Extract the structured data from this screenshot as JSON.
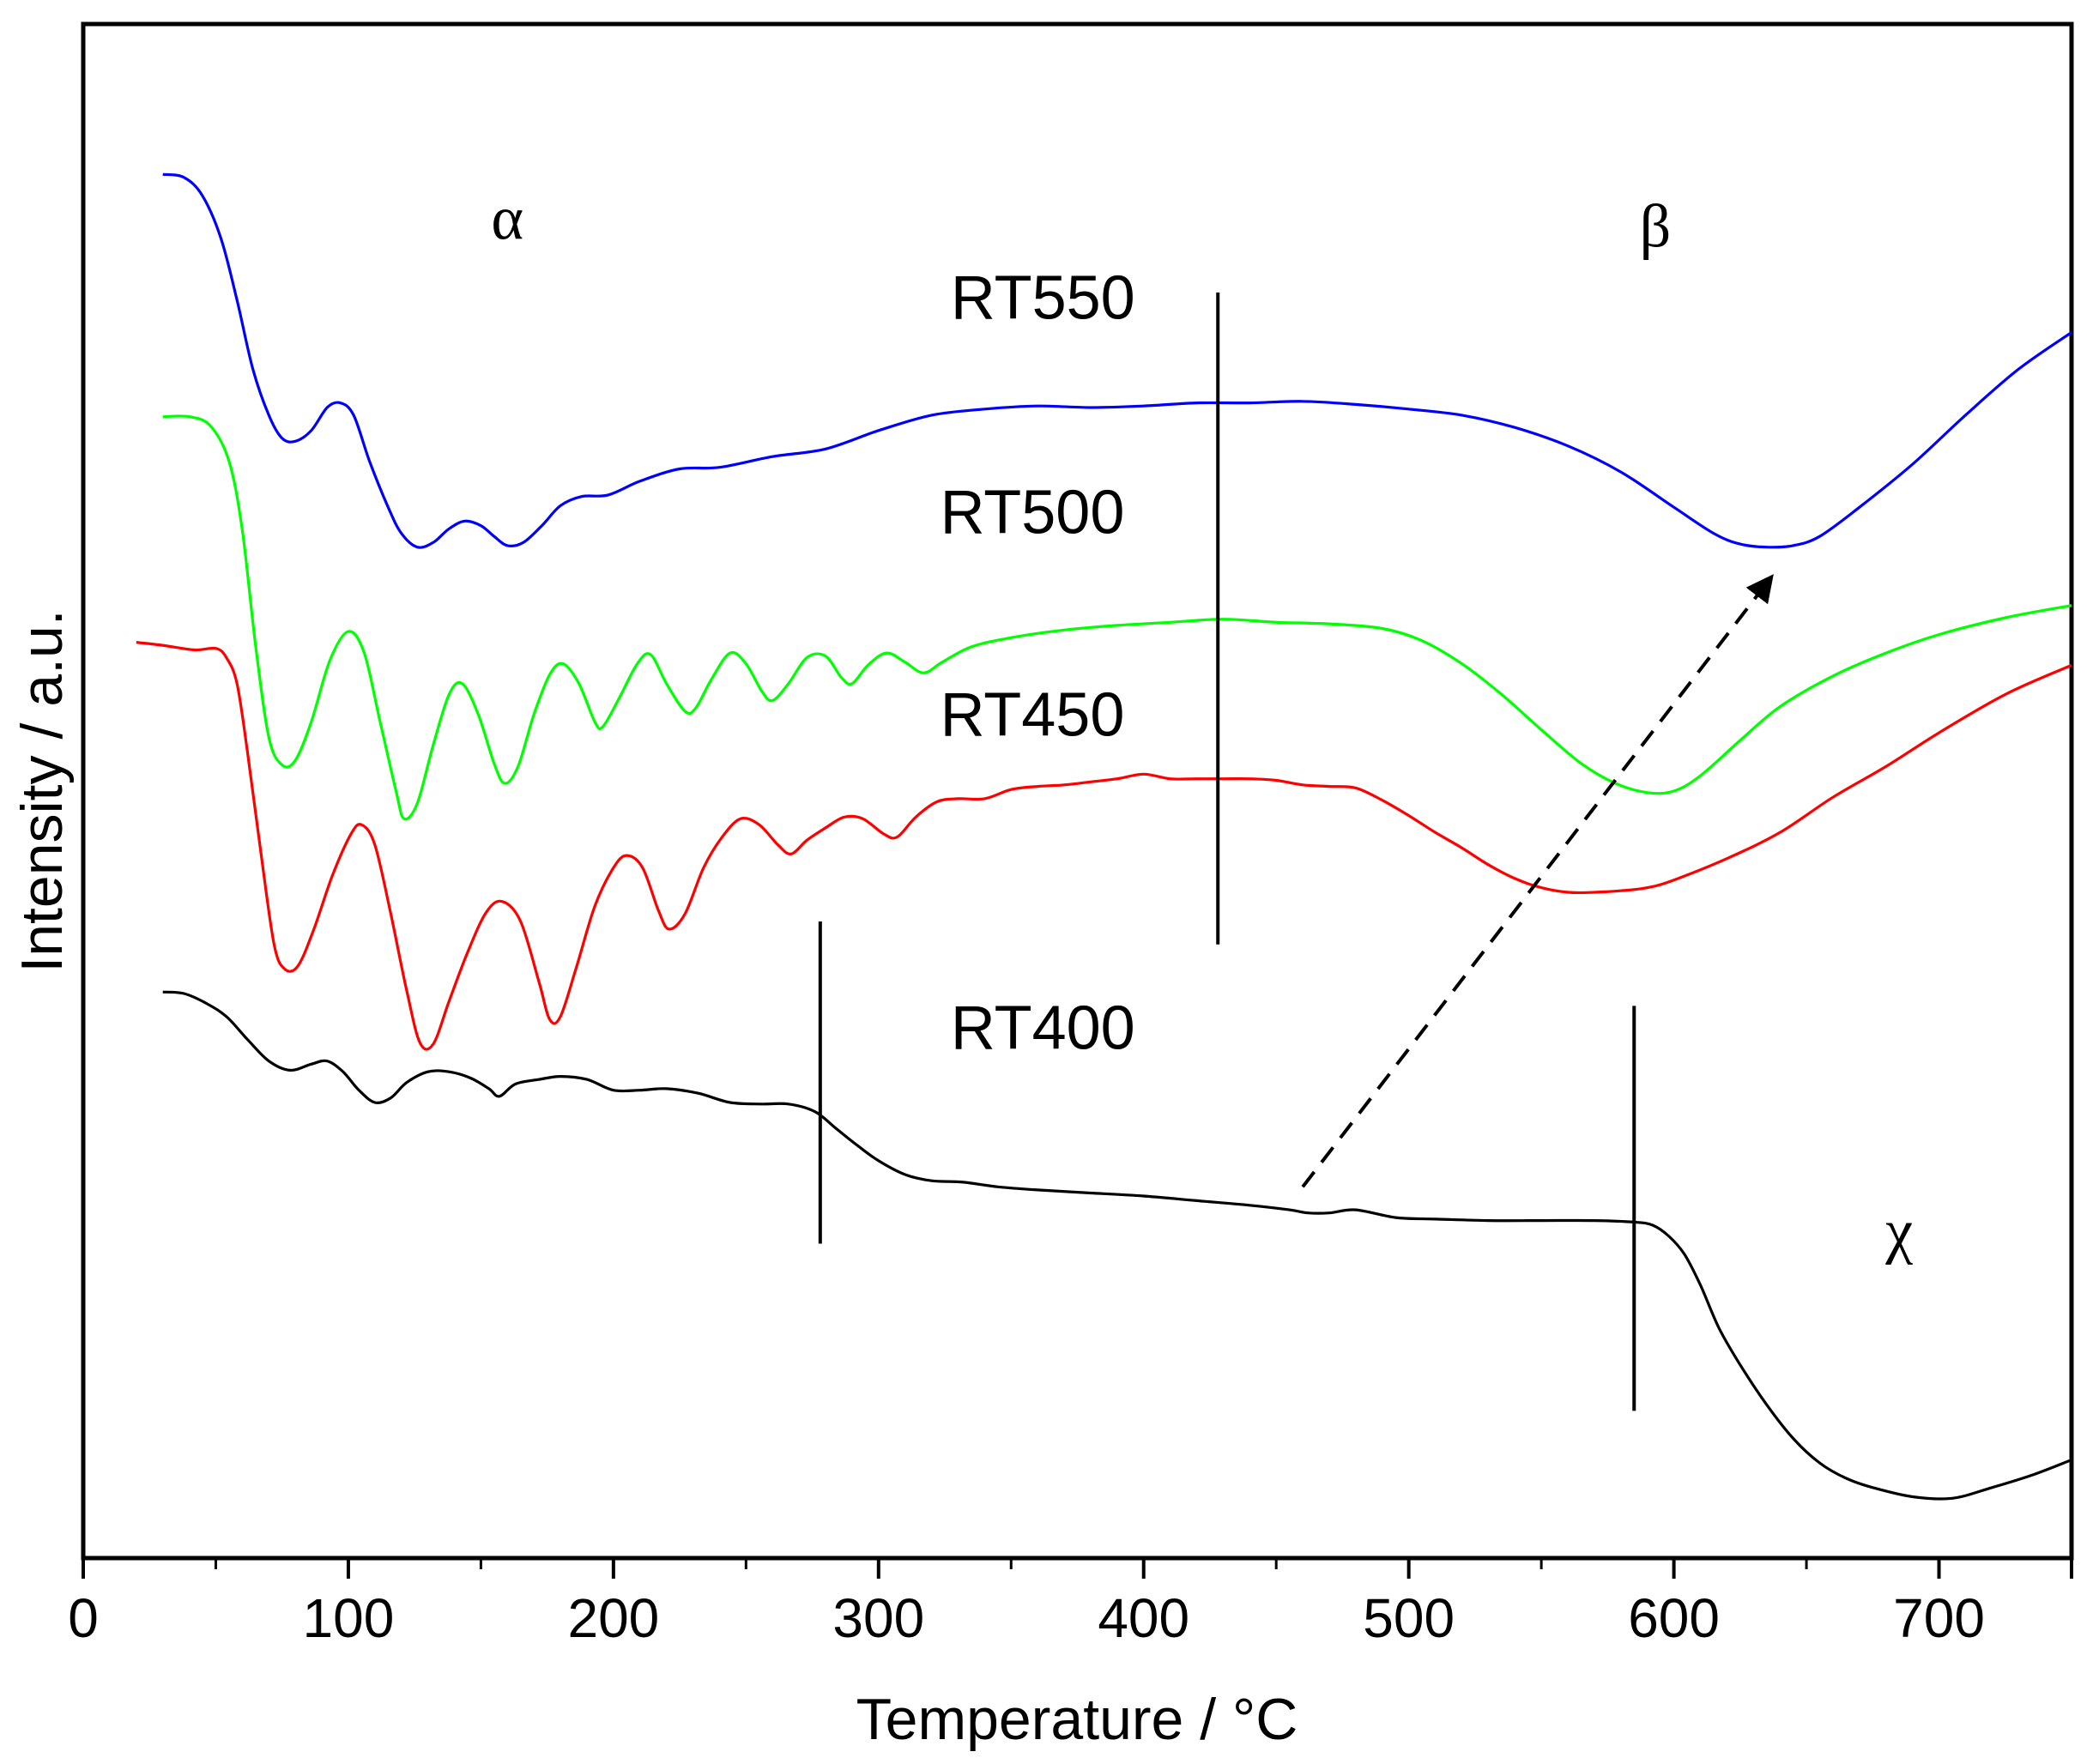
{
  "chart_data": {
    "type": "line",
    "title": "",
    "xlabel": "Temperature / °C",
    "ylabel": "Intensity / a.u.",
    "xlim": [
      0,
      750
    ],
    "ylim": [
      0,
      100
    ],
    "xticks": [
      0,
      100,
      200,
      300,
      400,
      500,
      600,
      700
    ],
    "yticks_visible": false,
    "grid": false,
    "legend": "none",
    "series": [
      {
        "name": "RT550",
        "color": "#0000ff",
        "points": [
          [
            30,
            90.2
          ],
          [
            38,
            90.0
          ],
          [
            45,
            88.8
          ],
          [
            52,
            86.0
          ],
          [
            58,
            82.0
          ],
          [
            64,
            77.5
          ],
          [
            70,
            74.5
          ],
          [
            75,
            73.0
          ],
          [
            80,
            72.8
          ],
          [
            86,
            73.5
          ],
          [
            92,
            75.0
          ],
          [
            97,
            75.3
          ],
          [
            102,
            74.5
          ],
          [
            108,
            71.5
          ],
          [
            115,
            68.5
          ],
          [
            120,
            66.8
          ],
          [
            126,
            65.9
          ],
          [
            132,
            66.2
          ],
          [
            138,
            67.1
          ],
          [
            144,
            67.6
          ],
          [
            150,
            67.3
          ],
          [
            155,
            66.6
          ],
          [
            160,
            66.0
          ],
          [
            166,
            66.2
          ],
          [
            173,
            67.3
          ],
          [
            180,
            68.6
          ],
          [
            188,
            69.2
          ],
          [
            198,
            69.3
          ],
          [
            210,
            70.2
          ],
          [
            225,
            71.0
          ],
          [
            240,
            71.1
          ],
          [
            260,
            71.8
          ],
          [
            280,
            72.3
          ],
          [
            300,
            73.5
          ],
          [
            320,
            74.5
          ],
          [
            340,
            74.9
          ],
          [
            360,
            75.1
          ],
          [
            380,
            75.0
          ],
          [
            400,
            75.1
          ],
          [
            420,
            75.3
          ],
          [
            440,
            75.3
          ],
          [
            460,
            75.4
          ],
          [
            480,
            75.2
          ],
          [
            500,
            74.9
          ],
          [
            520,
            74.5
          ],
          [
            540,
            73.7
          ],
          [
            560,
            72.5
          ],
          [
            580,
            70.8
          ],
          [
            600,
            68.5
          ],
          [
            615,
            66.8
          ],
          [
            625,
            66.1
          ],
          [
            635,
            65.9
          ],
          [
            645,
            66.0
          ],
          [
            655,
            66.6
          ],
          [
            670,
            68.5
          ],
          [
            690,
            71.3
          ],
          [
            710,
            74.5
          ],
          [
            730,
            77.5
          ],
          [
            750,
            79.9
          ]
        ]
      },
      {
        "name": "RT500",
        "color": "#00ff00",
        "points": [
          [
            30,
            74.4
          ],
          [
            40,
            74.4
          ],
          [
            48,
            73.8
          ],
          [
            55,
            71.5
          ],
          [
            60,
            67.0
          ],
          [
            65,
            59.5
          ],
          [
            70,
            53.5
          ],
          [
            75,
            51.7
          ],
          [
            80,
            52.0
          ],
          [
            86,
            54.5
          ],
          [
            93,
            58.5
          ],
          [
            100,
            60.4
          ],
          [
            106,
            59.0
          ],
          [
            112,
            54.5
          ],
          [
            118,
            50.0
          ],
          [
            121,
            48.2
          ],
          [
            126,
            49.2
          ],
          [
            132,
            53.0
          ],
          [
            138,
            56.3
          ],
          [
            143,
            57.0
          ],
          [
            149,
            55.0
          ],
          [
            155,
            51.8
          ],
          [
            159,
            50.5
          ],
          [
            164,
            51.6
          ],
          [
            170,
            55.0
          ],
          [
            176,
            57.6
          ],
          [
            181,
            58.3
          ],
          [
            187,
            57.0
          ],
          [
            193,
            54.5
          ],
          [
            196,
            54.2
          ],
          [
            202,
            56.0
          ],
          [
            209,
            58.3
          ],
          [
            214,
            58.9
          ],
          [
            220,
            57.0
          ],
          [
            227,
            55.2
          ],
          [
            231,
            55.4
          ],
          [
            237,
            57.3
          ],
          [
            244,
            59.0
          ],
          [
            250,
            58.3
          ],
          [
            256,
            56.5
          ],
          [
            260,
            55.9
          ],
          [
            266,
            57.0
          ],
          [
            273,
            58.7
          ],
          [
            280,
            58.8
          ],
          [
            286,
            57.4
          ],
          [
            290,
            57.0
          ],
          [
            296,
            58.2
          ],
          [
            303,
            59.0
          ],
          [
            310,
            58.4
          ],
          [
            317,
            57.7
          ],
          [
            324,
            58.4
          ],
          [
            335,
            59.4
          ],
          [
            350,
            60.0
          ],
          [
            370,
            60.5
          ],
          [
            390,
            60.8
          ],
          [
            410,
            61.0
          ],
          [
            430,
            61.2
          ],
          [
            450,
            61.0
          ],
          [
            470,
            60.9
          ],
          [
            490,
            60.6
          ],
          [
            505,
            59.8
          ],
          [
            520,
            58.3
          ],
          [
            535,
            56.3
          ],
          [
            550,
            54.0
          ],
          [
            565,
            51.8
          ],
          [
            578,
            50.5
          ],
          [
            590,
            49.9
          ],
          [
            600,
            50.0
          ],
          [
            610,
            51.0
          ],
          [
            625,
            53.3
          ],
          [
            640,
            55.5
          ],
          [
            660,
            57.5
          ],
          [
            680,
            59.0
          ],
          [
            700,
            60.2
          ],
          [
            725,
            61.3
          ],
          [
            750,
            62.1
          ]
        ]
      },
      {
        "name": "RT450",
        "color": "#ff0000",
        "points": [
          [
            20,
            59.7
          ],
          [
            30,
            59.5
          ],
          [
            42,
            59.2
          ],
          [
            50,
            59.3
          ],
          [
            54,
            58.7
          ],
          [
            58,
            57.0
          ],
          [
            62,
            52.5
          ],
          [
            67,
            46.0
          ],
          [
            72,
            40.0
          ],
          [
            76,
            38.4
          ],
          [
            81,
            38.6
          ],
          [
            87,
            41.0
          ],
          [
            94,
            44.5
          ],
          [
            101,
            47.2
          ],
          [
            105,
            47.8
          ],
          [
            110,
            46.5
          ],
          [
            116,
            42.0
          ],
          [
            122,
            37.0
          ],
          [
            127,
            33.6
          ],
          [
            132,
            33.5
          ],
          [
            138,
            36.3
          ],
          [
            145,
            39.5
          ],
          [
            152,
            42.1
          ],
          [
            158,
            42.8
          ],
          [
            165,
            41.5
          ],
          [
            172,
            37.5
          ],
          [
            176,
            35.1
          ],
          [
            180,
            35.3
          ],
          [
            186,
            38.5
          ],
          [
            193,
            42.5
          ],
          [
            200,
            45.0
          ],
          [
            205,
            45.8
          ],
          [
            211,
            45.0
          ],
          [
            217,
            42.2
          ],
          [
            221,
            41.0
          ],
          [
            227,
            42.0
          ],
          [
            234,
            45.0
          ],
          [
            241,
            47.0
          ],
          [
            248,
            48.2
          ],
          [
            255,
            47.8
          ],
          [
            262,
            46.5
          ],
          [
            267,
            45.9
          ],
          [
            273,
            46.8
          ],
          [
            280,
            47.6
          ],
          [
            287,
            48.3
          ],
          [
            294,
            48.2
          ],
          [
            302,
            47.2
          ],
          [
            307,
            47.0
          ],
          [
            314,
            48.3
          ],
          [
            322,
            49.3
          ],
          [
            330,
            49.5
          ],
          [
            340,
            49.5
          ],
          [
            350,
            50.1
          ],
          [
            360,
            50.3
          ],
          [
            370,
            50.4
          ],
          [
            380,
            50.6
          ],
          [
            390,
            50.8
          ],
          [
            400,
            51.1
          ],
          [
            410,
            50.8
          ],
          [
            420,
            50.8
          ],
          [
            430,
            50.8
          ],
          [
            440,
            50.8
          ],
          [
            450,
            50.7
          ],
          [
            460,
            50.4
          ],
          [
            470,
            50.3
          ],
          [
            480,
            50.2
          ],
          [
            490,
            49.4
          ],
          [
            500,
            48.4
          ],
          [
            510,
            47.3
          ],
          [
            520,
            46.3
          ],
          [
            530,
            45.2
          ],
          [
            540,
            44.3
          ],
          [
            550,
            43.7
          ],
          [
            560,
            43.4
          ],
          [
            570,
            43.4
          ],
          [
            580,
            43.5
          ],
          [
            590,
            43.7
          ],
          [
            600,
            44.2
          ],
          [
            620,
            45.6
          ],
          [
            640,
            47.3
          ],
          [
            660,
            49.6
          ],
          [
            680,
            51.6
          ],
          [
            700,
            53.8
          ],
          [
            725,
            56.3
          ],
          [
            750,
            58.2
          ]
        ]
      },
      {
        "name": "RT400",
        "color": "#000000",
        "points": [
          [
            30,
            36.9
          ],
          [
            38,
            36.8
          ],
          [
            46,
            36.2
          ],
          [
            54,
            35.3
          ],
          [
            62,
            33.8
          ],
          [
            70,
            32.4
          ],
          [
            78,
            31.8
          ],
          [
            86,
            32.2
          ],
          [
            92,
            32.4
          ],
          [
            98,
            31.7
          ],
          [
            104,
            30.5
          ],
          [
            110,
            29.7
          ],
          [
            116,
            30.0
          ],
          [
            122,
            31.0
          ],
          [
            130,
            31.7
          ],
          [
            138,
            31.7
          ],
          [
            146,
            31.3
          ],
          [
            153,
            30.6
          ],
          [
            157,
            30.1
          ],
          [
            163,
            30.9
          ],
          [
            172,
            31.2
          ],
          [
            180,
            31.4
          ],
          [
            190,
            31.2
          ],
          [
            200,
            30.5
          ],
          [
            210,
            30.5
          ],
          [
            220,
            30.6
          ],
          [
            232,
            30.3
          ],
          [
            244,
            29.7
          ],
          [
            256,
            29.6
          ],
          [
            266,
            29.6
          ],
          [
            276,
            29.1
          ],
          [
            284,
            28.0
          ],
          [
            292,
            26.9
          ],
          [
            300,
            25.9
          ],
          [
            310,
            25.0
          ],
          [
            320,
            24.6
          ],
          [
            332,
            24.5
          ],
          [
            345,
            24.2
          ],
          [
            360,
            24.0
          ],
          [
            380,
            23.8
          ],
          [
            400,
            23.6
          ],
          [
            420,
            23.3
          ],
          [
            440,
            23.0
          ],
          [
            455,
            22.7
          ],
          [
            462,
            22.5
          ],
          [
            470,
            22.5
          ],
          [
            480,
            22.7
          ],
          [
            495,
            22.2
          ],
          [
            510,
            22.1
          ],
          [
            530,
            22.0
          ],
          [
            550,
            22.0
          ],
          [
            570,
            22.0
          ],
          [
            585,
            21.9
          ],
          [
            592,
            21.7
          ],
          [
            598,
            21.0
          ],
          [
            604,
            19.8
          ],
          [
            610,
            17.8
          ],
          [
            617,
            15.0
          ],
          [
            625,
            12.6
          ],
          [
            635,
            10.0
          ],
          [
            645,
            7.8
          ],
          [
            655,
            6.2
          ],
          [
            665,
            5.2
          ],
          [
            675,
            4.6
          ],
          [
            690,
            4.0
          ],
          [
            705,
            3.9
          ],
          [
            720,
            4.6
          ],
          [
            735,
            5.4
          ],
          [
            750,
            6.4
          ]
        ]
      }
    ],
    "annotations": {
      "series_labels": [
        {
          "text": "RT550",
          "x": 362,
          "y": 80.8
        },
        {
          "text": "RT500",
          "x": 358,
          "y": 66.8
        },
        {
          "text": "RT450",
          "x": 358,
          "y": 53.6
        },
        {
          "text": "RT400",
          "x": 362,
          "y": 33.2
        }
      ],
      "region_labels": [
        {
          "text": "α",
          "x": 160,
          "y": 86.0
        },
        {
          "text": "β",
          "x": 593,
          "y": 85.5
        },
        {
          "text": "χ",
          "x": 685,
          "y": 20.0
        }
      ],
      "vertical_markers": [
        {
          "x": 428,
          "y_from": 40.0,
          "y_to": 82.5
        },
        {
          "x": 278,
          "y_from": 20.5,
          "y_to": 41.5
        },
        {
          "x": 585,
          "y_from": 9.6,
          "y_to": 36.0
        }
      ],
      "arrow": {
        "from": [
          460,
          24.2
        ],
        "to": [
          637,
          64.0
        ],
        "style": "dashed"
      }
    }
  }
}
